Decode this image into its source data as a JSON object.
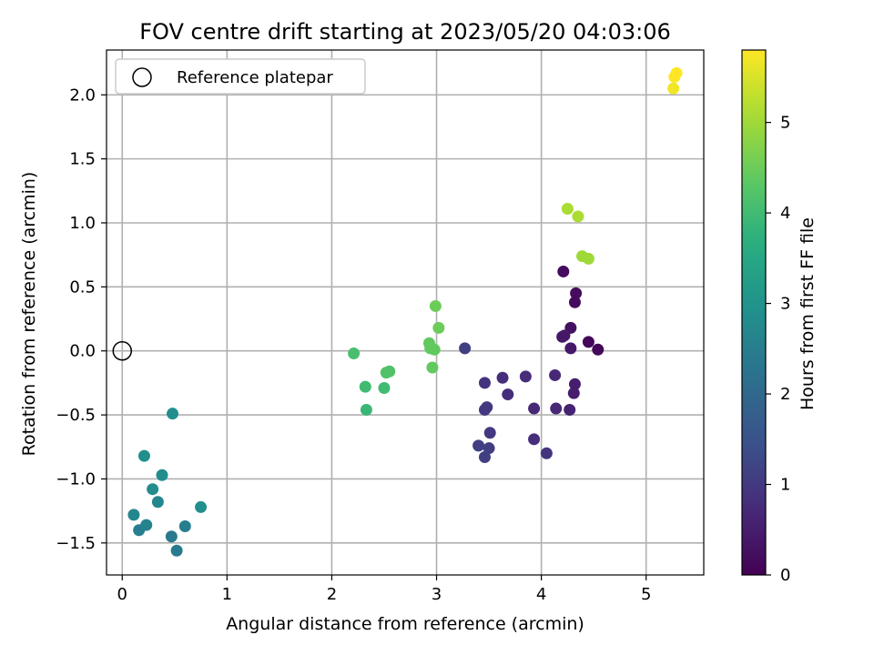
{
  "chart_data": {
    "type": "scatter",
    "title": "FOV centre drift starting at 2023/05/20 04:03:06",
    "xlabel": "Angular distance from reference (arcmin)",
    "ylabel": "Rotation from reference (arcmin)",
    "xlim": [
      -0.15,
      5.55
    ],
    "ylim": [
      -1.75,
      2.35
    ],
    "x_ticks": [
      0,
      1,
      2,
      3,
      4,
      5
    ],
    "x_tick_labels": [
      "0",
      "1",
      "2",
      "3",
      "4",
      "5"
    ],
    "y_ticks": [
      -1.5,
      -1.0,
      -0.5,
      0.0,
      0.5,
      1.0,
      1.5,
      2.0
    ],
    "y_tick_labels": [
      "−1.5",
      "−1.0",
      "−0.5",
      "0.0",
      "0.5",
      "1.0",
      "1.5",
      "2.0"
    ],
    "grid": true,
    "legend": {
      "position": "top-left",
      "label": "Reference platepar"
    },
    "reference_point": {
      "x": 0,
      "y": 0
    },
    "colorbar": {
      "label": "Hours from first FF file",
      "range": [
        0,
        5.8
      ],
      "ticks": [
        0,
        1,
        2,
        3,
        4,
        5
      ],
      "tick_labels": [
        "0",
        "1",
        "2",
        "3",
        "4",
        "5"
      ]
    },
    "points": [
      {
        "x": 4.05,
        "y": -0.8,
        "hours": 0.9
      },
      {
        "x": 3.93,
        "y": -0.69,
        "hours": 0.8
      },
      {
        "x": 4.32,
        "y": 0.38,
        "hours": 0.2
      },
      {
        "x": 4.33,
        "y": 0.45,
        "hours": 0.2
      },
      {
        "x": 4.21,
        "y": 0.62,
        "hours": 0.2
      },
      {
        "x": 4.28,
        "y": 0.18,
        "hours": 0.3
      },
      {
        "x": 4.22,
        "y": 0.12,
        "hours": 0.4
      },
      {
        "x": 4.2,
        "y": 0.11,
        "hours": 0.4
      },
      {
        "x": 4.28,
        "y": 0.02,
        "hours": 0.4
      },
      {
        "x": 4.45,
        "y": 0.07,
        "hours": 0.1
      },
      {
        "x": 4.54,
        "y": 0.01,
        "hours": 0.1
      },
      {
        "x": 4.32,
        "y": -0.26,
        "hours": 0.5
      },
      {
        "x": 4.31,
        "y": -0.33,
        "hours": 0.5
      },
      {
        "x": 4.27,
        "y": -0.46,
        "hours": 0.6
      },
      {
        "x": 4.14,
        "y": -0.45,
        "hours": 0.7
      },
      {
        "x": 4.13,
        "y": -0.19,
        "hours": 0.7
      },
      {
        "x": 3.93,
        "y": -0.45,
        "hours": 0.7
      },
      {
        "x": 3.85,
        "y": -0.2,
        "hours": 0.8
      },
      {
        "x": 3.68,
        "y": -0.34,
        "hours": 0.8
      },
      {
        "x": 3.63,
        "y": -0.21,
        "hours": 0.8
      },
      {
        "x": 3.46,
        "y": -0.25,
        "hours": 0.9
      },
      {
        "x": 3.48,
        "y": -0.44,
        "hours": 1.0
      },
      {
        "x": 3.46,
        "y": -0.46,
        "hours": 1.0
      },
      {
        "x": 3.51,
        "y": -0.64,
        "hours": 1.0
      },
      {
        "x": 3.5,
        "y": -0.76,
        "hours": 1.1
      },
      {
        "x": 3.4,
        "y": -0.74,
        "hours": 1.1
      },
      {
        "x": 3.46,
        "y": -0.83,
        "hours": 1.1
      },
      {
        "x": 3.27,
        "y": 0.02,
        "hours": 1.1
      },
      {
        "x": 0.48,
        "y": -0.49,
        "hours": 2.9
      },
      {
        "x": 0.21,
        "y": -0.82,
        "hours": 2.9
      },
      {
        "x": 0.38,
        "y": -0.97,
        "hours": 2.8
      },
      {
        "x": 0.29,
        "y": -1.08,
        "hours": 2.8
      },
      {
        "x": 0.34,
        "y": -1.18,
        "hours": 2.7
      },
      {
        "x": 0.75,
        "y": -1.22,
        "hours": 2.9
      },
      {
        "x": 0.11,
        "y": -1.28,
        "hours": 2.7
      },
      {
        "x": 0.23,
        "y": -1.36,
        "hours": 2.6
      },
      {
        "x": 0.6,
        "y": -1.37,
        "hours": 2.5
      },
      {
        "x": 0.16,
        "y": -1.4,
        "hours": 2.5
      },
      {
        "x": 0.47,
        "y": -1.45,
        "hours": 2.4
      },
      {
        "x": 0.52,
        "y": -1.56,
        "hours": 2.4
      },
      {
        "x": 2.21,
        "y": -0.02,
        "hours": 4.1
      },
      {
        "x": 2.32,
        "y": -0.28,
        "hours": 4.0
      },
      {
        "x": 2.33,
        "y": -0.46,
        "hours": 3.9
      },
      {
        "x": 2.5,
        "y": -0.29,
        "hours": 4.0
      },
      {
        "x": 2.52,
        "y": -0.17,
        "hours": 4.2
      },
      {
        "x": 2.55,
        "y": -0.16,
        "hours": 4.2
      },
      {
        "x": 2.93,
        "y": 0.06,
        "hours": 4.4
      },
      {
        "x": 2.94,
        "y": 0.02,
        "hours": 4.4
      },
      {
        "x": 2.98,
        "y": 0.01,
        "hours": 4.4
      },
      {
        "x": 3.02,
        "y": 0.18,
        "hours": 4.5
      },
      {
        "x": 2.99,
        "y": 0.35,
        "hours": 4.5
      },
      {
        "x": 2.96,
        "y": -0.13,
        "hours": 4.4
      },
      {
        "x": 4.25,
        "y": 1.11,
        "hours": 5.1
      },
      {
        "x": 4.35,
        "y": 1.05,
        "hours": 5.1
      },
      {
        "x": 4.39,
        "y": 0.74,
        "hours": 5.0
      },
      {
        "x": 4.45,
        "y": 0.72,
        "hours": 5.0
      },
      {
        "x": 5.27,
        "y": 2.14,
        "hours": 5.8
      },
      {
        "x": 5.29,
        "y": 2.17,
        "hours": 5.8
      },
      {
        "x": 5.26,
        "y": 2.05,
        "hours": 5.7
      }
    ]
  }
}
